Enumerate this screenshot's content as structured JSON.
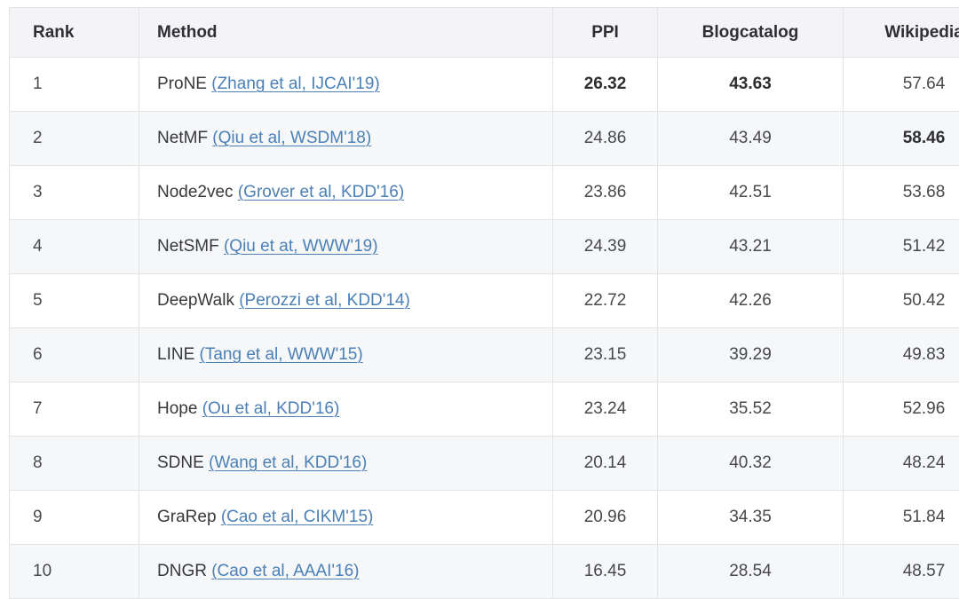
{
  "colors": {
    "link": "#4b80b6",
    "header_bg": "#f4f4f6",
    "zebra_bg": "#f6f7f8",
    "border": "#e3e4e6"
  },
  "chart_data": {
    "type": "table",
    "columns": [
      "Rank",
      "Method",
      "PPI",
      "Blogcatalog",
      "Wikipedia"
    ],
    "rows": [
      {
        "rank": "1",
        "method": "ProNE",
        "citation": "(Zhang et al, IJCAI'19)",
        "values": [
          "26.32",
          "43.63",
          "57.64"
        ],
        "bold": [
          true,
          true,
          false
        ]
      },
      {
        "rank": "2",
        "method": "NetMF",
        "citation": "(Qiu et al, WSDM'18)",
        "values": [
          "24.86",
          "43.49",
          "58.46"
        ],
        "bold": [
          false,
          false,
          true
        ]
      },
      {
        "rank": "3",
        "method": "Node2vec",
        "citation": "(Grover et al, KDD'16)",
        "values": [
          "23.86",
          "42.51",
          "53.68"
        ],
        "bold": [
          false,
          false,
          false
        ]
      },
      {
        "rank": "4",
        "method": "NetSMF",
        "citation": "(Qiu et at, WWW'19)",
        "values": [
          "24.39",
          "43.21",
          "51.42"
        ],
        "bold": [
          false,
          false,
          false
        ]
      },
      {
        "rank": "5",
        "method": "DeepWalk",
        "citation": "(Perozzi et al, KDD'14)",
        "values": [
          "22.72",
          "42.26",
          "50.42"
        ],
        "bold": [
          false,
          false,
          false
        ]
      },
      {
        "rank": "6",
        "method": "LINE",
        "citation": "(Tang et al, WWW'15)",
        "values": [
          "23.15",
          "39.29",
          "49.83"
        ],
        "bold": [
          false,
          false,
          false
        ]
      },
      {
        "rank": "7",
        "method": "Hope",
        "citation": "(Ou et al, KDD'16)",
        "values": [
          "23.24",
          "35.52",
          "52.96"
        ],
        "bold": [
          false,
          false,
          false
        ]
      },
      {
        "rank": "8",
        "method": "SDNE",
        "citation": "(Wang et al, KDD'16)",
        "values": [
          "20.14",
          "40.32",
          "48.24"
        ],
        "bold": [
          false,
          false,
          false
        ]
      },
      {
        "rank": "9",
        "method": "GraRep",
        "citation": "(Cao et al, CIKM'15)",
        "values": [
          "20.96",
          "34.35",
          "51.84"
        ],
        "bold": [
          false,
          false,
          false
        ]
      },
      {
        "rank": "10",
        "method": "DNGR",
        "citation": "(Cao et al, AAAI'16)",
        "values": [
          "16.45",
          "28.54",
          "48.57"
        ],
        "bold": [
          false,
          false,
          false
        ]
      }
    ]
  }
}
